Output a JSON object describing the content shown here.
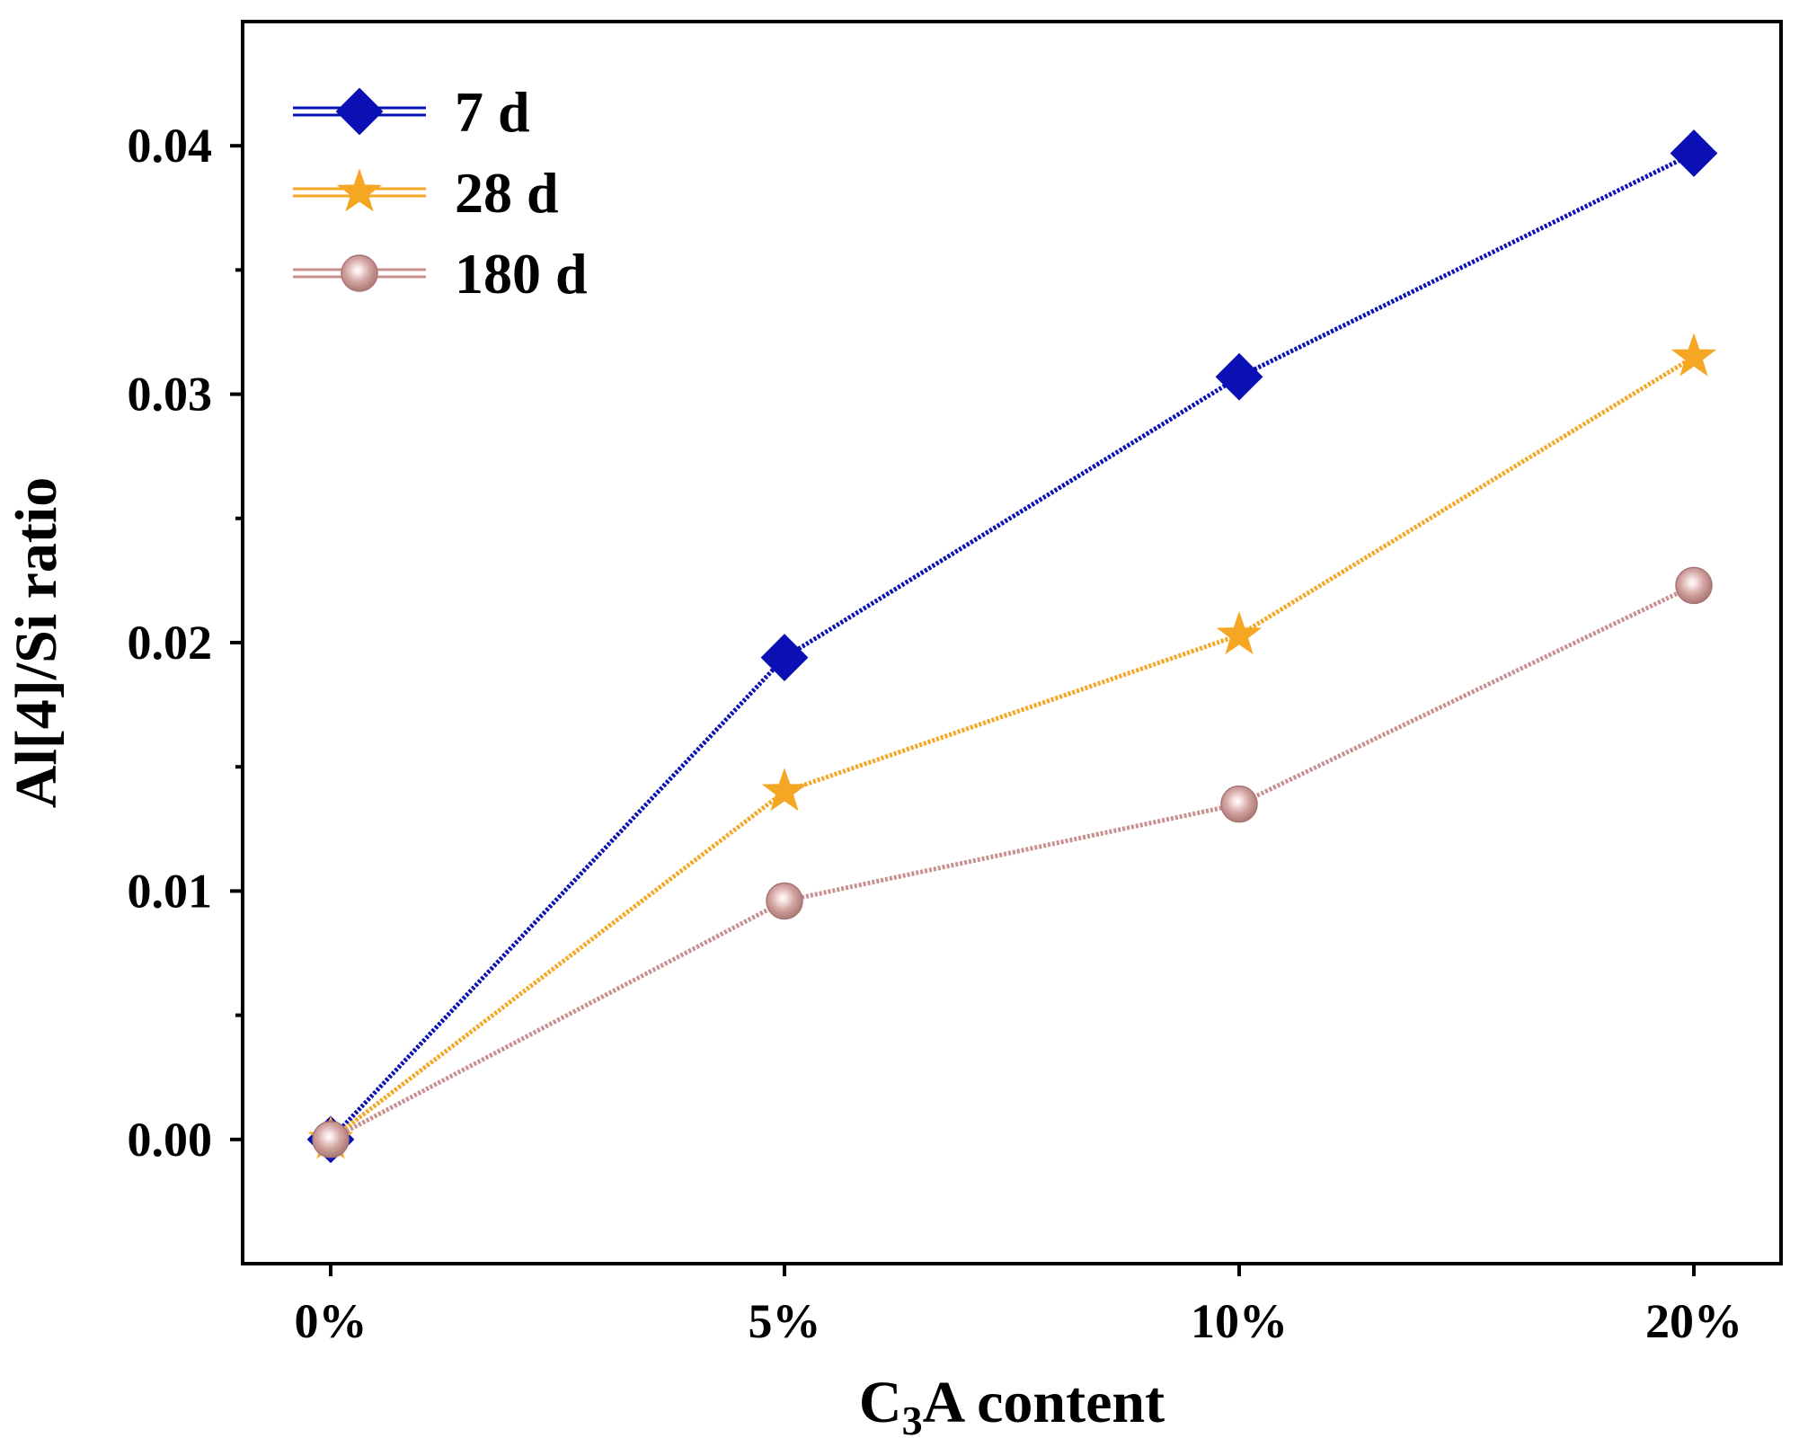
{
  "chart_data": {
    "type": "line",
    "title": "",
    "xlabel": {
      "main": "C",
      "sub": "3",
      "rest": "A content"
    },
    "ylabel": "Al[4]/Si ratio",
    "categories": [
      "0%",
      "5%",
      "10%",
      "20%"
    ],
    "ylim": [
      -0.005,
      0.045
    ],
    "yticks": [
      0.0,
      0.01,
      0.02,
      0.03,
      0.04
    ],
    "ytick_labels": [
      "0.00",
      "0.01",
      "0.02",
      "0.03",
      "0.04"
    ],
    "legend_position": "top-left",
    "grid": false,
    "series": [
      {
        "name": "7 d",
        "marker": "diamond",
        "color": "#0a10b4",
        "values": [
          0.0,
          0.0194,
          0.0307,
          0.0397
        ]
      },
      {
        "name": "28 d",
        "marker": "star",
        "color": "#f5a623",
        "values": [
          0.0,
          0.014,
          0.0203,
          0.0315
        ]
      },
      {
        "name": "180 d",
        "marker": "sphere",
        "color": "#c8918f",
        "values": [
          0.0,
          0.0096,
          0.0135,
          0.0223
        ]
      }
    ]
  }
}
